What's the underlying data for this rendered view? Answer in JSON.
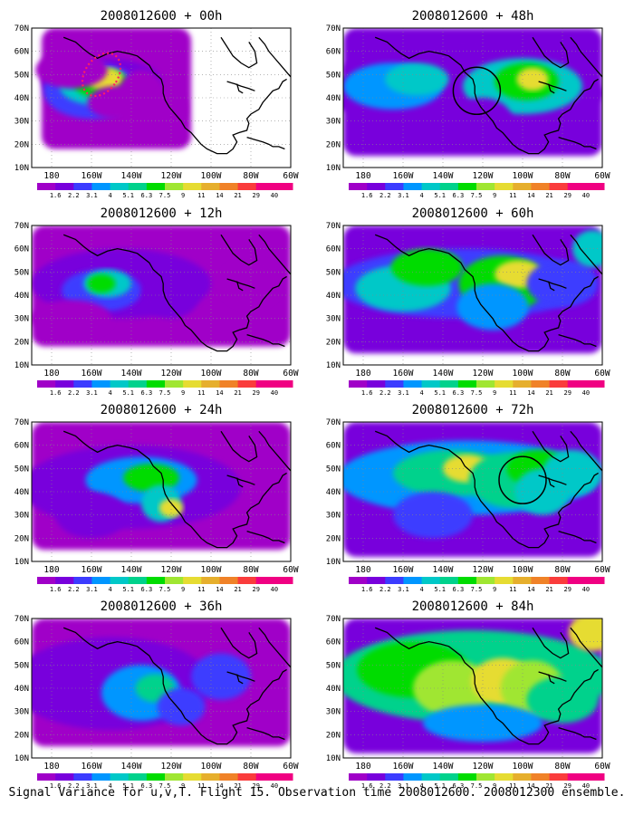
{
  "figure": {
    "caption": "Signal Variance for u,v,T. Flight 15. Observation time 2008012600. 2008012300 ensemble."
  },
  "axes": {
    "lat_labels": [
      "10N",
      "20N",
      "30N",
      "40N",
      "50N",
      "60N",
      "70N"
    ],
    "lon_labels": [
      "180",
      "160W",
      "140W",
      "120W",
      "100W",
      "80W",
      "60W"
    ]
  },
  "colorbar": {
    "labels": [
      "1.6",
      "2.2",
      "3.1",
      "4",
      "5.1",
      "6.3",
      "7.5",
      "9",
      "11",
      "14",
      "21",
      "29",
      "40"
    ],
    "colors": [
      "#a000c8",
      "#7800dc",
      "#3c3cff",
      "#0096ff",
      "#00c8c8",
      "#00d28c",
      "#00dc00",
      "#a0e632",
      "#e6dc32",
      "#e6af2d",
      "#f08228",
      "#fa3c3c",
      "#f00082"
    ]
  },
  "panels": [
    {
      "title": "2008012600 + 00h",
      "lead_hours": 0,
      "highlight": "red dotted ellipse"
    },
    {
      "title": "2008012600 + 48h",
      "lead_hours": 48,
      "highlight": "black circle"
    },
    {
      "title": "2008012600 + 12h",
      "lead_hours": 12
    },
    {
      "title": "2008012600 + 60h",
      "lead_hours": 60
    },
    {
      "title": "2008012600 + 24h",
      "lead_hours": 24
    },
    {
      "title": "2008012600 + 72h",
      "lead_hours": 72,
      "highlight": "black circle"
    },
    {
      "title": "2008012600 + 36h",
      "lead_hours": 36
    },
    {
      "title": "2008012600 + 84h",
      "lead_hours": 84
    }
  ]
}
